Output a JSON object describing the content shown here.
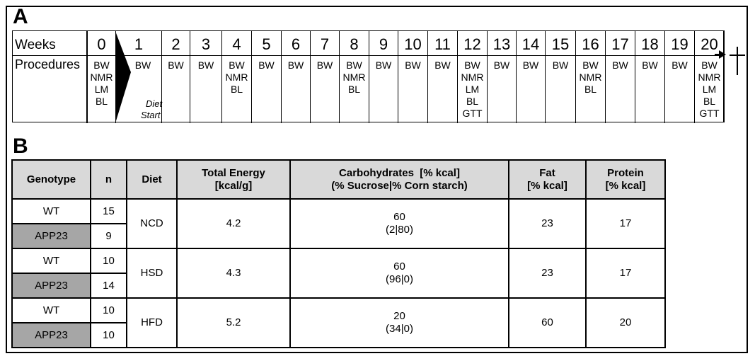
{
  "panel_a": {
    "letter": "A",
    "weeks_label": "Weeks",
    "procedures_label": "Procedures",
    "weeks": [
      "0",
      "1",
      "2",
      "3",
      "4",
      "5",
      "6",
      "7",
      "8",
      "9",
      "10",
      "11",
      "12",
      "13",
      "14",
      "15",
      "16",
      "17",
      "18",
      "19",
      "20"
    ],
    "procedures": [
      [
        "BW",
        "NMR",
        "LM",
        "BL"
      ],
      [
        "BW"
      ],
      [
        "BW"
      ],
      [
        "BW"
      ],
      [
        "BW",
        "NMR",
        "BL"
      ],
      [
        "BW"
      ],
      [
        "BW"
      ],
      [
        "BW"
      ],
      [
        "BW",
        "NMR",
        "BL"
      ],
      [
        "BW"
      ],
      [
        "BW"
      ],
      [
        "BW"
      ],
      [
        "BW",
        "NMR",
        "LM",
        "BL",
        "GTT"
      ],
      [
        "BW"
      ],
      [
        "BW"
      ],
      [
        "BW"
      ],
      [
        "BW",
        "NMR",
        "BL"
      ],
      [
        "BW"
      ],
      [
        "BW"
      ],
      [
        "BW"
      ],
      [
        "BW",
        "NMR",
        "LM",
        "BL",
        "GTT"
      ]
    ],
    "diet_start_line1": "Diet",
    "diet_start_line2": "Start",
    "end_marker": "cross",
    "arrow": "right-arrow"
  },
  "panel_b": {
    "letter": "B",
    "headers": {
      "genotype": "Genotype",
      "n": "n",
      "diet": "Diet",
      "energy_l1": "Total Energy",
      "energy_l2": "[kcal/g]",
      "carb_l1": "Carbohydrates  [% kcal]",
      "carb_l2": "(% Sucrose|% Corn starch)",
      "fat_l1": "Fat",
      "fat_l2": "[% kcal]",
      "protein_l1": "Protein",
      "protein_l2": "[% kcal]"
    },
    "groups": [
      {
        "diet": "NCD",
        "energy": "4.2",
        "carb": "60",
        "carb_split": "(2|80)",
        "fat": "23",
        "protein": "17",
        "rows": [
          {
            "genotype": "WT",
            "n": "15"
          },
          {
            "genotype": "APP23",
            "n": "9"
          }
        ]
      },
      {
        "diet": "HSD",
        "energy": "4.3",
        "carb": "60",
        "carb_split": "(96|0)",
        "fat": "23",
        "protein": "17",
        "rows": [
          {
            "genotype": "WT",
            "n": "10"
          },
          {
            "genotype": "APP23",
            "n": "14"
          }
        ]
      },
      {
        "diet": "HFD",
        "energy": "5.2",
        "carb": "20",
        "carb_split": "(34|0)",
        "fat": "60",
        "protein": "20",
        "rows": [
          {
            "genotype": "WT",
            "n": "10"
          },
          {
            "genotype": "APP23",
            "n": "10"
          }
        ]
      }
    ],
    "colors": {
      "header_bg": "#d9d9d9",
      "app23_bg": "#a6a6a6"
    }
  }
}
